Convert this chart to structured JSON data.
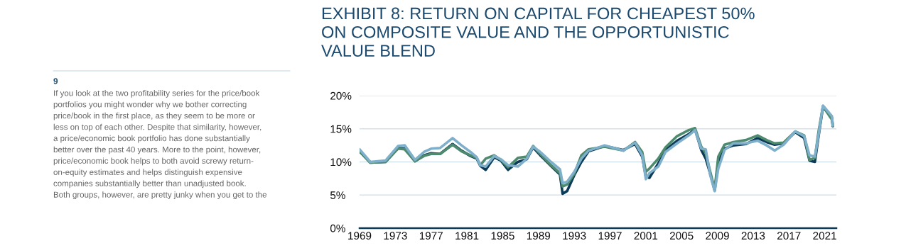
{
  "chart_data": {
    "type": "line",
    "title": "EXHIBIT 8: RETURN ON CAPITAL FOR CHEAPEST 50%\nON COMPOSITE VALUE AND THE OPPORTUNISTIC\nVALUE BLEND",
    "annotations": [
      "9",
      "If you look at the two profitability series for the price/book\nportfolios you might wonder why we bother correcting\nprice/book in the first place, as they seem to be more or\nless on top of each other. Despite that similarity, however,\na price/economic book portfolio has done substantially\nbetter over the past 40 years. More to the point, however,\nprice/economic book helps to both avoid screwy return-\non-equity estimates and helps distinguish expensive\ncompanies substantially better than unadjusted book.\nBoth groups, however, are pretty junky when you get to the"
    ],
    "x": [
      1969.0,
      1970.2,
      1971.9,
      1973.3,
      1974.05,
      1975.2,
      1976.2,
      1977.0,
      1978.0,
      1979.4,
      1980.4,
      1981.4,
      1982.1,
      1982.5,
      1983.1,
      1984.05,
      1984.8,
      1985.6,
      1986.7,
      1987.7,
      1988.4,
      1989.2,
      1990.4,
      1991.4,
      1991.7,
      1992.2,
      1993.0,
      1993.8,
      1994.6,
      1996.4,
      1998.5,
      1999.8,
      2000.6,
      2001.0,
      2001.4,
      2002.4,
      2003.2,
      2004.5,
      2005.8,
      2006.5,
      2007.2,
      2007.7,
      2008.2,
      2008.7,
      2009.1,
      2009.8,
      2010.8,
      2012.2,
      2013.5,
      2014.5,
      2015.4,
      2016.4,
      2017.7,
      2018.7,
      2019.3,
      2019.9,
      2020.3,
      2020.8,
      2021.8,
      2021.9
    ],
    "series": [
      {
        "color": "#0c3b57",
        "values": [
          11.6,
          9.9,
          10.0,
          12.1,
          12.0,
          10.1,
          11.0,
          11.3,
          11.2,
          12.7,
          11.7,
          10.9,
          10.5,
          9.4,
          8.8,
          10.7,
          10.2,
          8.8,
          10.0,
          10.4,
          12.2,
          11.0,
          9.4,
          8.1,
          5.2,
          5.6,
          8.0,
          10.0,
          11.6,
          12.4,
          11.8,
          12.7,
          10.8,
          7.8,
          7.6,
          9.8,
          11.8,
          13.2,
          14.2,
          14.9,
          11.8,
          10.5,
          8.2,
          5.7,
          10.0,
          12.0,
          12.5,
          12.7,
          13.6,
          13.0,
          12.6,
          12.8,
          14.5,
          13.6,
          10.2,
          10.0,
          13.8,
          18.3,
          16.7,
          15.4
        ]
      },
      {
        "color": "#4e8a6e",
        "values": [
          11.6,
          9.9,
          10.0,
          12.0,
          11.9,
          10.1,
          10.9,
          11.2,
          11.2,
          12.6,
          11.6,
          11.0,
          10.6,
          9.5,
          10.5,
          11.0,
          10.3,
          9.2,
          10.6,
          10.8,
          12.4,
          11.2,
          9.5,
          8.3,
          6.3,
          6.6,
          8.2,
          11.0,
          11.9,
          12.3,
          11.7,
          13.0,
          11.5,
          8.5,
          9.0,
          10.5,
          12.2,
          13.9,
          14.8,
          15.1,
          12.3,
          11.3,
          8.5,
          5.9,
          10.8,
          12.6,
          13.0,
          13.3,
          14.0,
          13.3,
          12.8,
          12.9,
          14.6,
          14.0,
          10.3,
          10.6,
          14.5,
          18.4,
          16.4,
          15.5
        ]
      },
      {
        "color": "#7fb0cb",
        "values": [
          11.9,
          10.0,
          10.2,
          12.4,
          12.5,
          10.3,
          11.5,
          12.0,
          12.1,
          13.6,
          12.5,
          11.5,
          10.7,
          9.5,
          9.3,
          10.9,
          10.4,
          9.5,
          9.3,
          10.5,
          12.3,
          11.5,
          10.0,
          8.9,
          6.8,
          7.0,
          8.5,
          10.5,
          11.7,
          12.5,
          11.7,
          12.9,
          11.0,
          7.4,
          8.3,
          9.3,
          11.5,
          12.8,
          14.0,
          14.8,
          12.0,
          11.9,
          8.0,
          5.6,
          9.0,
          11.8,
          12.8,
          12.8,
          13.2,
          12.5,
          11.7,
          12.6,
          14.6,
          13.9,
          11.0,
          10.8,
          14.0,
          18.5,
          16.9,
          15.5
        ]
      }
    ],
    "xlim": [
      1969,
      2022.3
    ],
    "xticks": [
      1969,
      1973,
      1977,
      1981,
      1985,
      1989,
      1993,
      1997,
      2001,
      2005,
      2009,
      2013,
      2017,
      2021
    ],
    "ylim": [
      0,
      20
    ],
    "yticks": [
      {
        "value": 0,
        "label": "0%"
      },
      {
        "value": 5,
        "label": "5%"
      },
      {
        "value": 10,
        "label": "10%"
      },
      {
        "value": 15,
        "label": "15%"
      },
      {
        "value": 20,
        "label": "20%"
      }
    ],
    "grid": "y"
  }
}
